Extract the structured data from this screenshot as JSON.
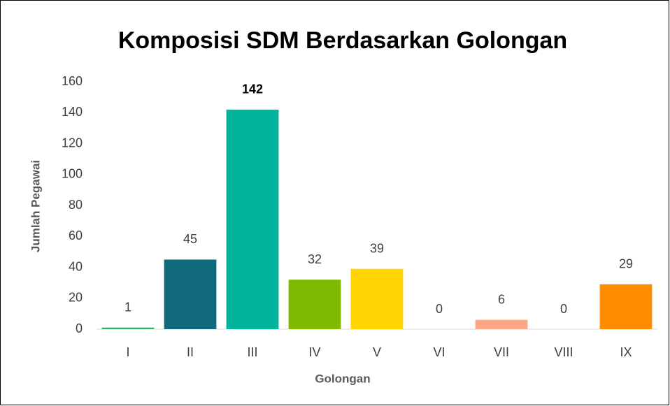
{
  "chart_data": {
    "type": "bar",
    "title": "Komposisi SDM Berdasarkan Golongan",
    "xlabel": "Golongan",
    "ylabel": "Jumlah Pegawai",
    "categories": [
      "I",
      "II",
      "III",
      "IV",
      "V",
      "VI",
      "VII",
      "VIII",
      "IX"
    ],
    "values": [
      1,
      45,
      142,
      32,
      39,
      0,
      6,
      0,
      29
    ],
    "colors": [
      "#2fb36a",
      "#116a7b",
      "#00b59c",
      "#7fba00",
      "#ffd400",
      "#8a8a8a",
      "#f9a784",
      "#8a8a8a",
      "#ff8c00"
    ],
    "ylim": [
      0,
      160
    ],
    "yticks": [
      0,
      20,
      40,
      60,
      80,
      100,
      120,
      140,
      160
    ],
    "grid": false
  }
}
